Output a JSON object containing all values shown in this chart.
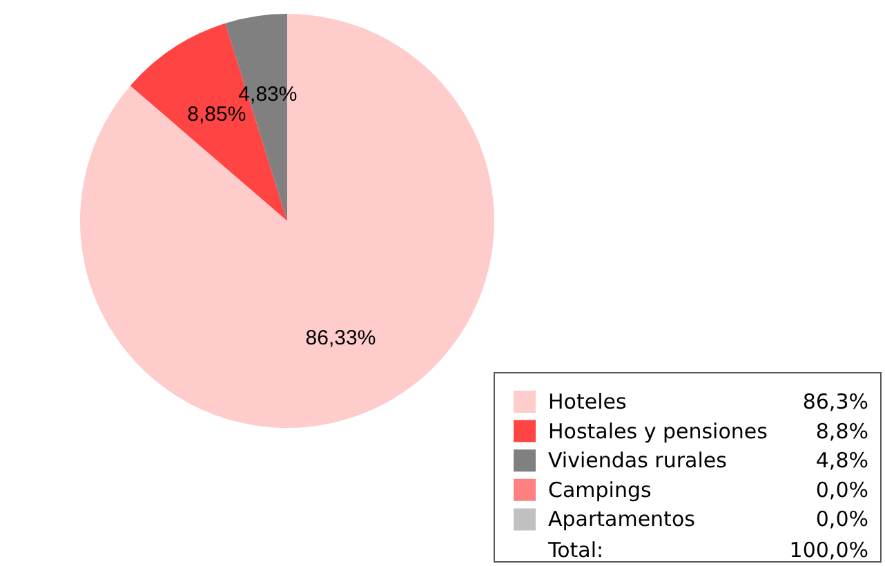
{
  "chart_data": {
    "type": "pie",
    "categories": [
      "Hoteles",
      "Hostales y pensiones",
      "Viviendas rurales",
      "Campings",
      "Apartamentos"
    ],
    "values": [
      86.33,
      8.85,
      4.83,
      0,
      0
    ],
    "colors": [
      "#ffcccc",
      "#ff4444",
      "#808080",
      "#ff8080",
      "#c0c0c0"
    ],
    "value_labels": [
      "86,33%",
      "8,85%",
      "4,83%",
      null,
      null
    ],
    "legend": "bottom right",
    "annotations": [
      "86,3%",
      "8,8%",
      "4,8%",
      "0,0%",
      "0,0%",
      "Total:",
      "100,0%"
    ]
  }
}
